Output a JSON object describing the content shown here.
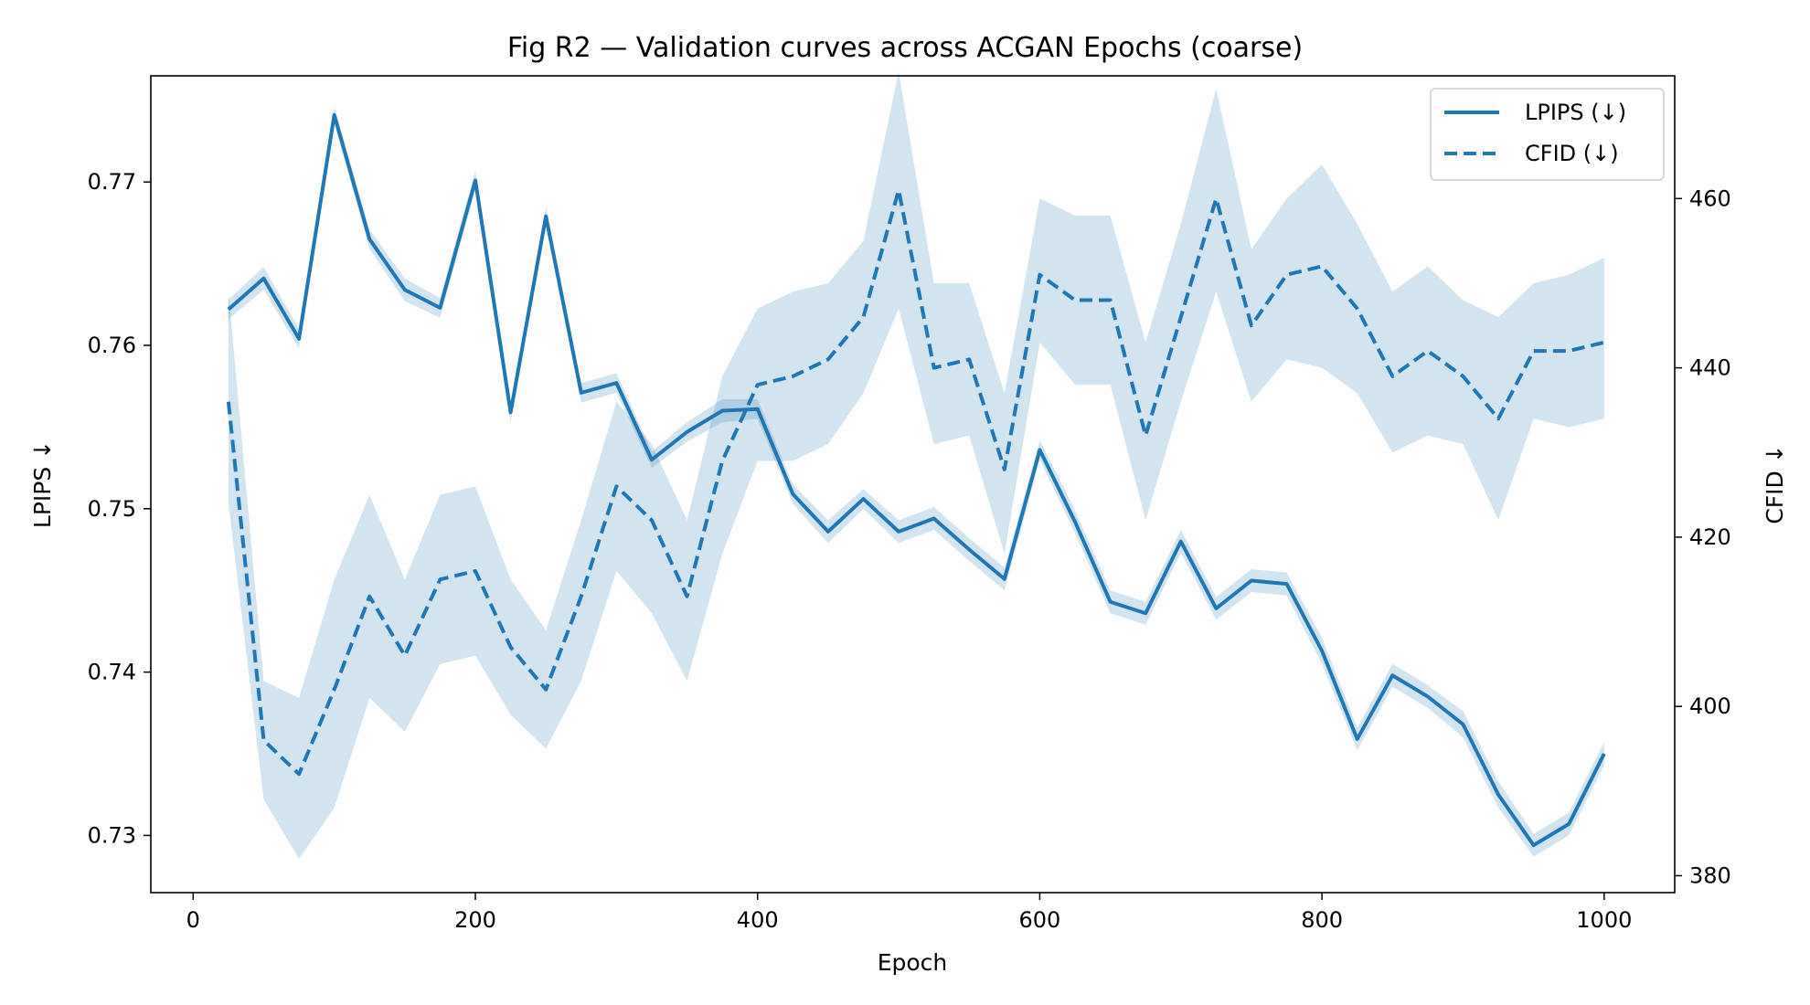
{
  "chart_data": {
    "type": "line",
    "title": "Fig R2 — Validation curves across ACGAN Epochs (coarse)",
    "xlabel": "Epoch",
    "ylabel_left": "LPIPS ↓",
    "ylabel_right": "CFID ↓",
    "xlim": [
      -30,
      1050
    ],
    "ylim_left": [
      0.7265,
      0.7765
    ],
    "ylim_right": [
      378,
      474.5
    ],
    "xticks": [
      0,
      200,
      400,
      600,
      800,
      1000
    ],
    "yticks_left": [
      0.73,
      0.74,
      0.75,
      0.76,
      0.77
    ],
    "yticks_right": [
      380,
      400,
      420,
      440,
      460
    ],
    "ytick_labels_left": [
      "0.73",
      "0.74",
      "0.75",
      "0.76",
      "0.77"
    ],
    "grid": false,
    "legend_position": "top-right",
    "colors": {
      "line": "#1f77b4",
      "band": "#1f77b4"
    },
    "x": [
      25,
      50,
      75,
      100,
      125,
      150,
      175,
      200,
      225,
      250,
      275,
      300,
      325,
      350,
      375,
      400,
      425,
      450,
      475,
      500,
      525,
      550,
      575,
      600,
      625,
      650,
      675,
      700,
      725,
      750,
      775,
      800,
      825,
      850,
      875,
      900,
      925,
      950,
      975,
      1000
    ],
    "series": [
      {
        "name": "LPIPS (↓)",
        "axis": "left",
        "style": "solid",
        "values": [
          0.7622,
          0.7641,
          0.7604,
          0.7741,
          0.7665,
          0.7634,
          0.7623,
          0.7701,
          0.7559,
          0.7679,
          0.7571,
          0.7577,
          0.753,
          0.7547,
          0.756,
          0.7561,
          0.7509,
          0.7486,
          0.7506,
          0.7486,
          0.7494,
          0.7475,
          0.7457,
          0.7536,
          0.7492,
          0.7443,
          0.7436,
          0.748,
          0.7439,
          0.7456,
          0.7454,
          0.7413,
          0.7359,
          0.7398,
          0.7385,
          0.7368,
          0.7325,
          0.7294,
          0.7307,
          0.735
        ],
        "band_low": [
          0.7616,
          0.7634,
          0.7598,
          0.7736,
          0.7659,
          0.7627,
          0.7617,
          0.7695,
          0.7553,
          0.7673,
          0.7565,
          0.7571,
          0.7525,
          0.7541,
          0.7553,
          0.7555,
          0.7503,
          0.7479,
          0.75,
          0.7479,
          0.7487,
          0.7468,
          0.745,
          0.753,
          0.7485,
          0.7436,
          0.7429,
          0.7473,
          0.7432,
          0.7449,
          0.7447,
          0.7405,
          0.7352,
          0.7391,
          0.7378,
          0.736,
          0.7317,
          0.7287,
          0.73,
          0.7343
        ],
        "band_high": [
          0.7628,
          0.7648,
          0.761,
          0.7746,
          0.7671,
          0.7641,
          0.7629,
          0.7707,
          0.7565,
          0.7685,
          0.7577,
          0.7583,
          0.7535,
          0.7553,
          0.7567,
          0.7567,
          0.7515,
          0.7493,
          0.7512,
          0.7493,
          0.7501,
          0.7482,
          0.7464,
          0.7542,
          0.7499,
          0.745,
          0.7443,
          0.7487,
          0.7446,
          0.7463,
          0.7461,
          0.7421,
          0.7366,
          0.7405,
          0.7392,
          0.7376,
          0.7333,
          0.7301,
          0.7314,
          0.7357
        ]
      },
      {
        "name": "CFID (↓)",
        "axis": "right",
        "style": "dashed",
        "values": [
          436,
          396,
          392,
          402,
          413,
          406,
          415,
          416,
          407,
          402,
          413,
          426,
          422,
          413,
          429,
          438,
          439,
          441,
          446,
          461,
          440,
          441,
          428,
          451,
          448,
          448,
          432,
          446,
          460,
          445,
          451,
          452,
          447,
          439,
          442,
          439,
          434,
          442,
          442,
          443
        ],
        "band_low": [
          424,
          389,
          382,
          388,
          401,
          397,
          405,
          406,
          399,
          395,
          403,
          416,
          411,
          403,
          418,
          429,
          429,
          431,
          437,
          447,
          431,
          432,
          418,
          443,
          438,
          438,
          422,
          436,
          449,
          436,
          441,
          440,
          437,
          430,
          432,
          431,
          422,
          434,
          433,
          434
        ],
        "band_high": [
          449,
          403,
          401,
          415,
          425,
          415,
          425,
          426,
          415,
          409,
          422,
          436,
          431,
          422,
          439,
          447,
          449,
          450,
          455,
          475,
          450,
          450,
          437,
          460,
          458,
          458,
          443,
          457,
          473,
          454,
          460,
          464,
          457,
          449,
          452,
          448,
          446,
          450,
          451,
          453
        ]
      }
    ]
  }
}
